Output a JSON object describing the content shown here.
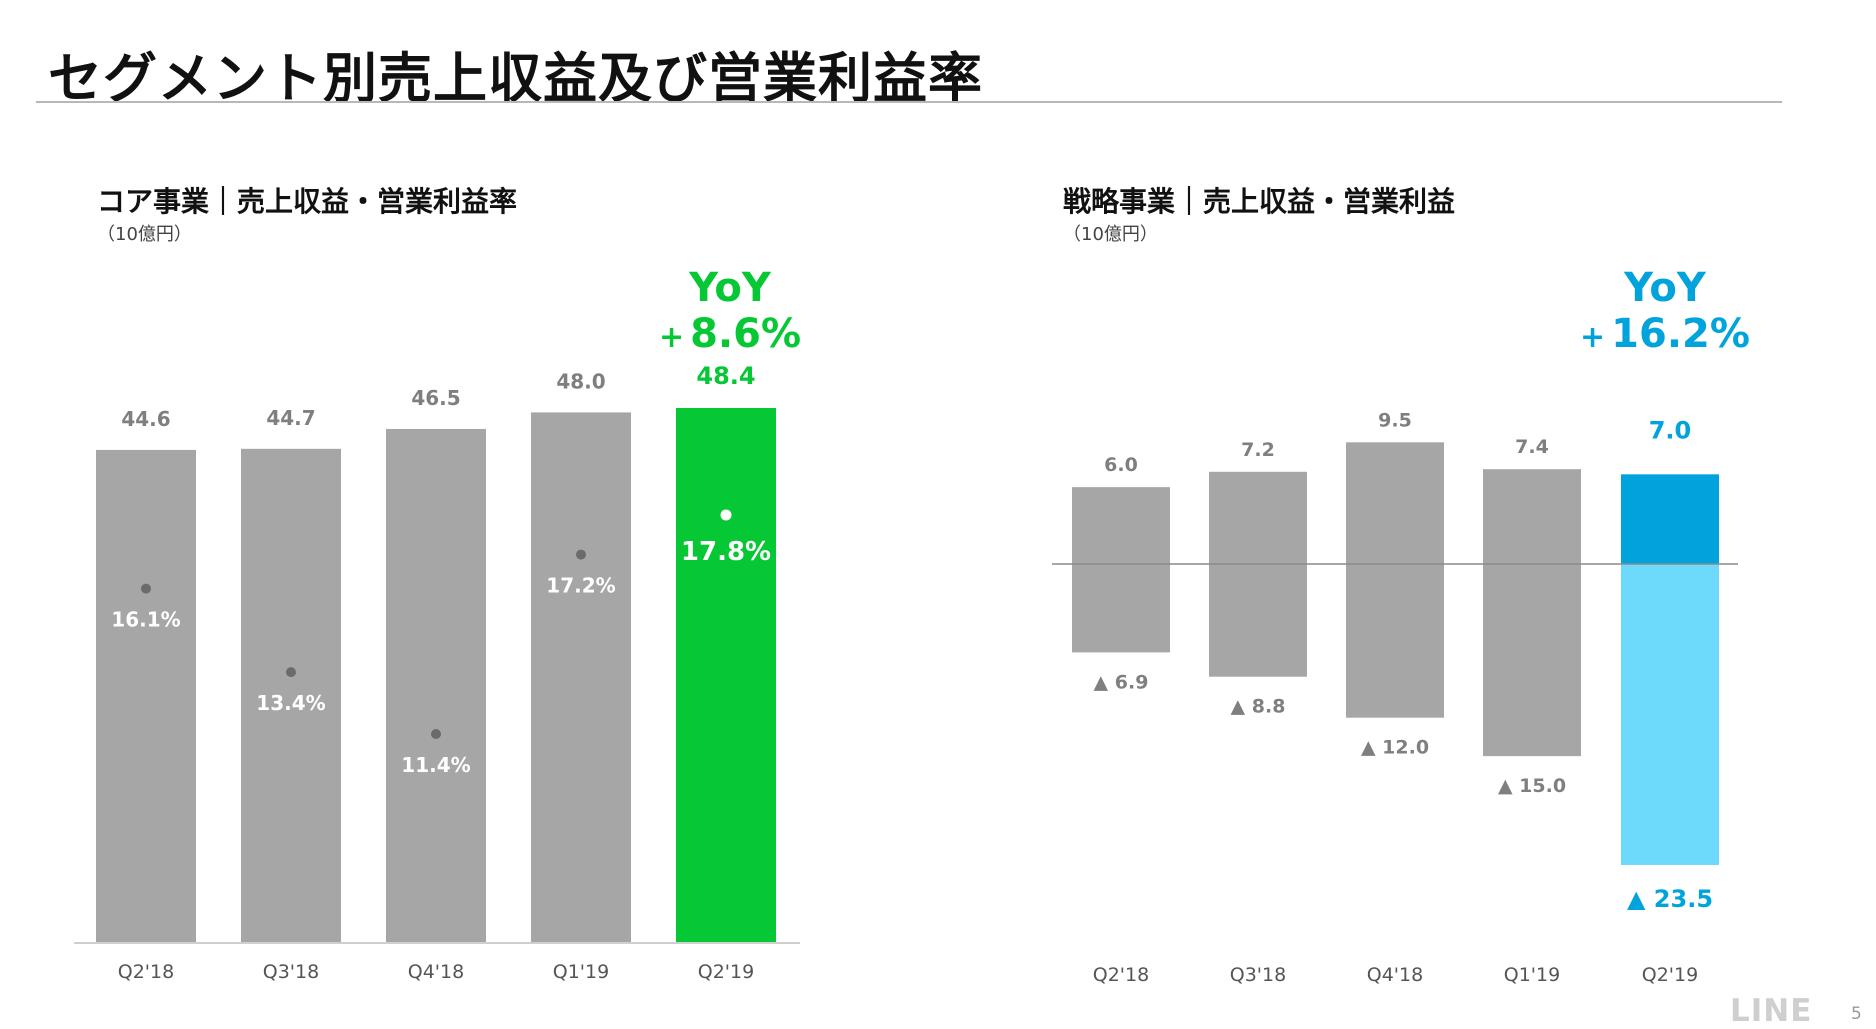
{
  "page": {
    "title": "セグメント別売上収益及び営業利益率",
    "brand": "LINE",
    "page_number": "5"
  },
  "colors": {
    "gray_bar": "#a6a6a6",
    "core_highlight": "#06c734",
    "strategic_positive": "#00a3db",
    "strategic_negative": "#6dd9fb",
    "label_gray": "#7f7f7f",
    "axis_line": "#bfbfbf"
  },
  "core": {
    "title": "コア事業｜売上収益・営業利益率",
    "unit": "（10億円）",
    "yoy_label": "YoY",
    "yoy_plus": "+",
    "yoy_value": "8.6%"
  },
  "strategic": {
    "title": "戦略事業｜売上収益・営業利益",
    "unit": "（10億円）",
    "yoy_label": "YoY",
    "yoy_plus": "+",
    "yoy_value": "16.2%"
  },
  "chart_data": [
    {
      "type": "bar",
      "title": "コア事業｜売上収益・営業利益率",
      "unit": "（10億円）",
      "categories": [
        "Q2'18",
        "Q3'18",
        "Q4'18",
        "Q1'19",
        "Q2'19"
      ],
      "series": [
        {
          "values": [
            44.6,
            44.7,
            46.5,
            48.0,
            48.4
          ]
        }
      ],
      "value_labels": [
        "44.6",
        "44.7",
        "46.5",
        "48.0",
        "48.4"
      ],
      "margin_values": [
        16.1,
        13.4,
        11.4,
        17.2,
        17.8
      ],
      "margin_labels": [
        "16.1%",
        "13.4%",
        "11.4%",
        "17.2%",
        "17.8%"
      ],
      "highlight_index": 4,
      "ylim": [
        0,
        48.4
      ],
      "grid": false
    },
    {
      "type": "bar",
      "title": "戦略事業｜売上収益・営業利益",
      "unit": "（10億円）",
      "categories": [
        "Q2'18",
        "Q3'18",
        "Q4'18",
        "Q1'19",
        "Q2'19"
      ],
      "series": [
        {
          "values": [
            6.0,
            7.2,
            9.5,
            7.4,
            7.0
          ]
        },
        {
          "values": [
            -6.9,
            -8.8,
            -12.0,
            -15.0,
            -23.5
          ]
        }
      ],
      "positive_labels": [
        "6.0",
        "7.2",
        "9.5",
        "7.4",
        "7.0"
      ],
      "negative_labels": [
        "▲ 6.9",
        "▲ 8.8",
        "▲ 12.0",
        "▲ 15.0",
        "▲ 23.5"
      ],
      "highlight_index": 4,
      "ylim": [
        -23.5,
        9.5
      ],
      "grid": false
    }
  ]
}
